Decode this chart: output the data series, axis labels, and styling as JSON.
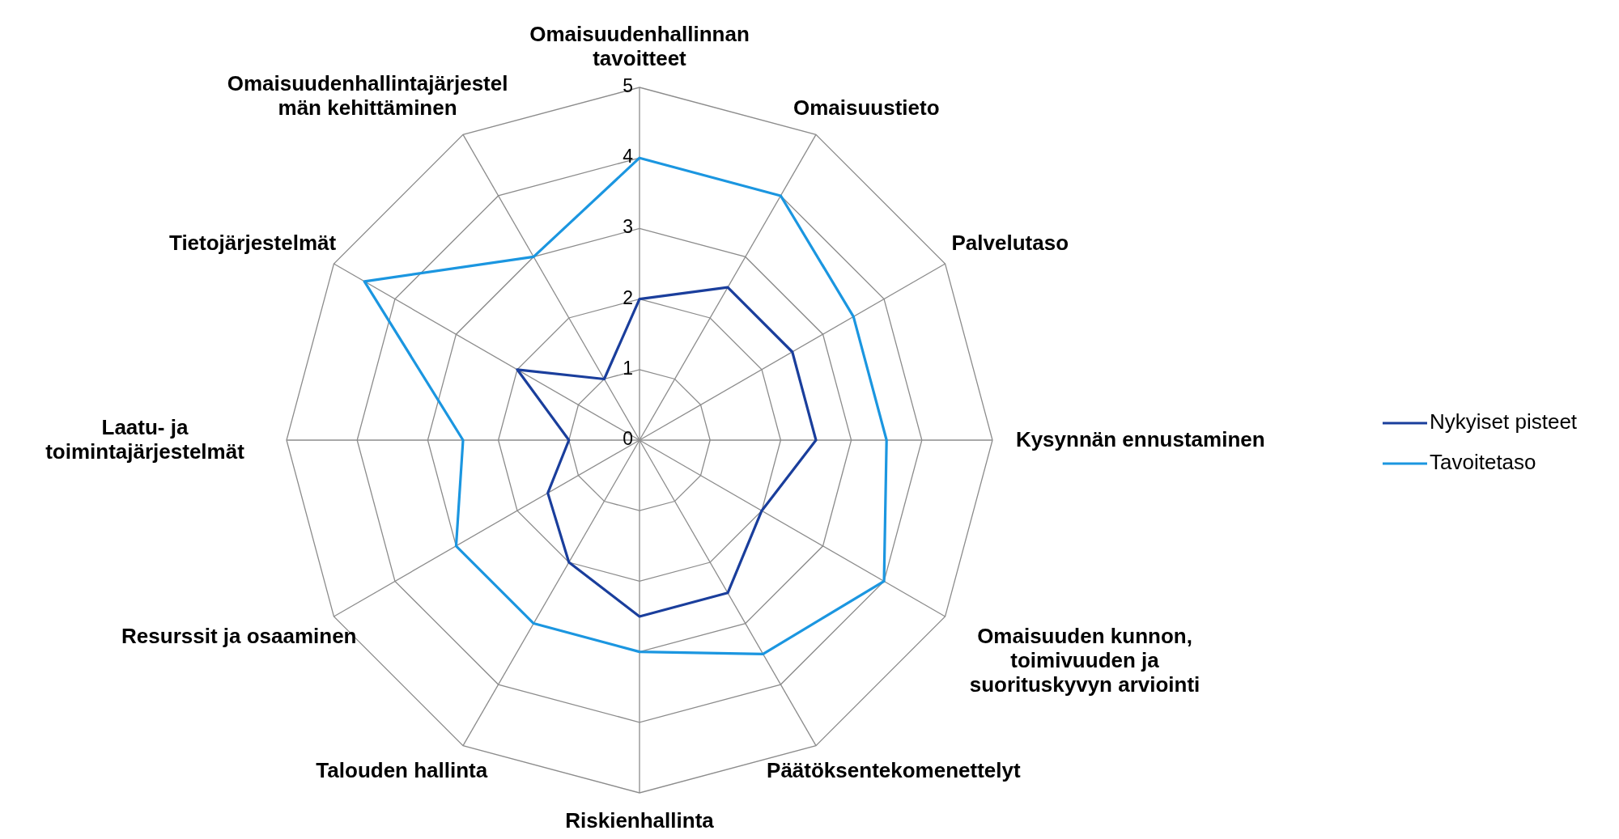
{
  "chart_data": {
    "type": "radar",
    "categories": [
      "Omaisuudenhallinnan tavoitteet",
      "Omaisuustieto",
      "Palvelutaso",
      "Kysynnän ennustaminen",
      "Omaisuuden kunnon, toimivuuden ja suorituskyvyn arviointi",
      "Päätöksentekomenettelyt",
      "Riskienhallinta",
      "Talouden hallinta",
      "Resurssit ja osaaminen",
      "Laatu- ja toimintajärjestelmät",
      "Tietojärjestelmät",
      "Omaisuudenhallintajärjestelmän kehittäminen"
    ],
    "series": [
      {
        "name": "Nykyiset pisteet",
        "color": "#1a3e9c",
        "values": [
          2,
          2.5,
          2.5,
          2.5,
          2,
          2.5,
          2.5,
          2,
          1.5,
          1,
          2,
          1
        ]
      },
      {
        "name": "Tavoitetaso",
        "color": "#1b96e0",
        "values": [
          4,
          4,
          3.5,
          3.5,
          4,
          3.5,
          3,
          3,
          3,
          2.5,
          4.5,
          3
        ]
      }
    ],
    "ylim": [
      0,
      5
    ],
    "yticks": [
      0,
      1,
      2,
      3,
      4,
      5
    ],
    "grid": true,
    "legend": "right",
    "marker": "none",
    "line_style": "solid"
  }
}
